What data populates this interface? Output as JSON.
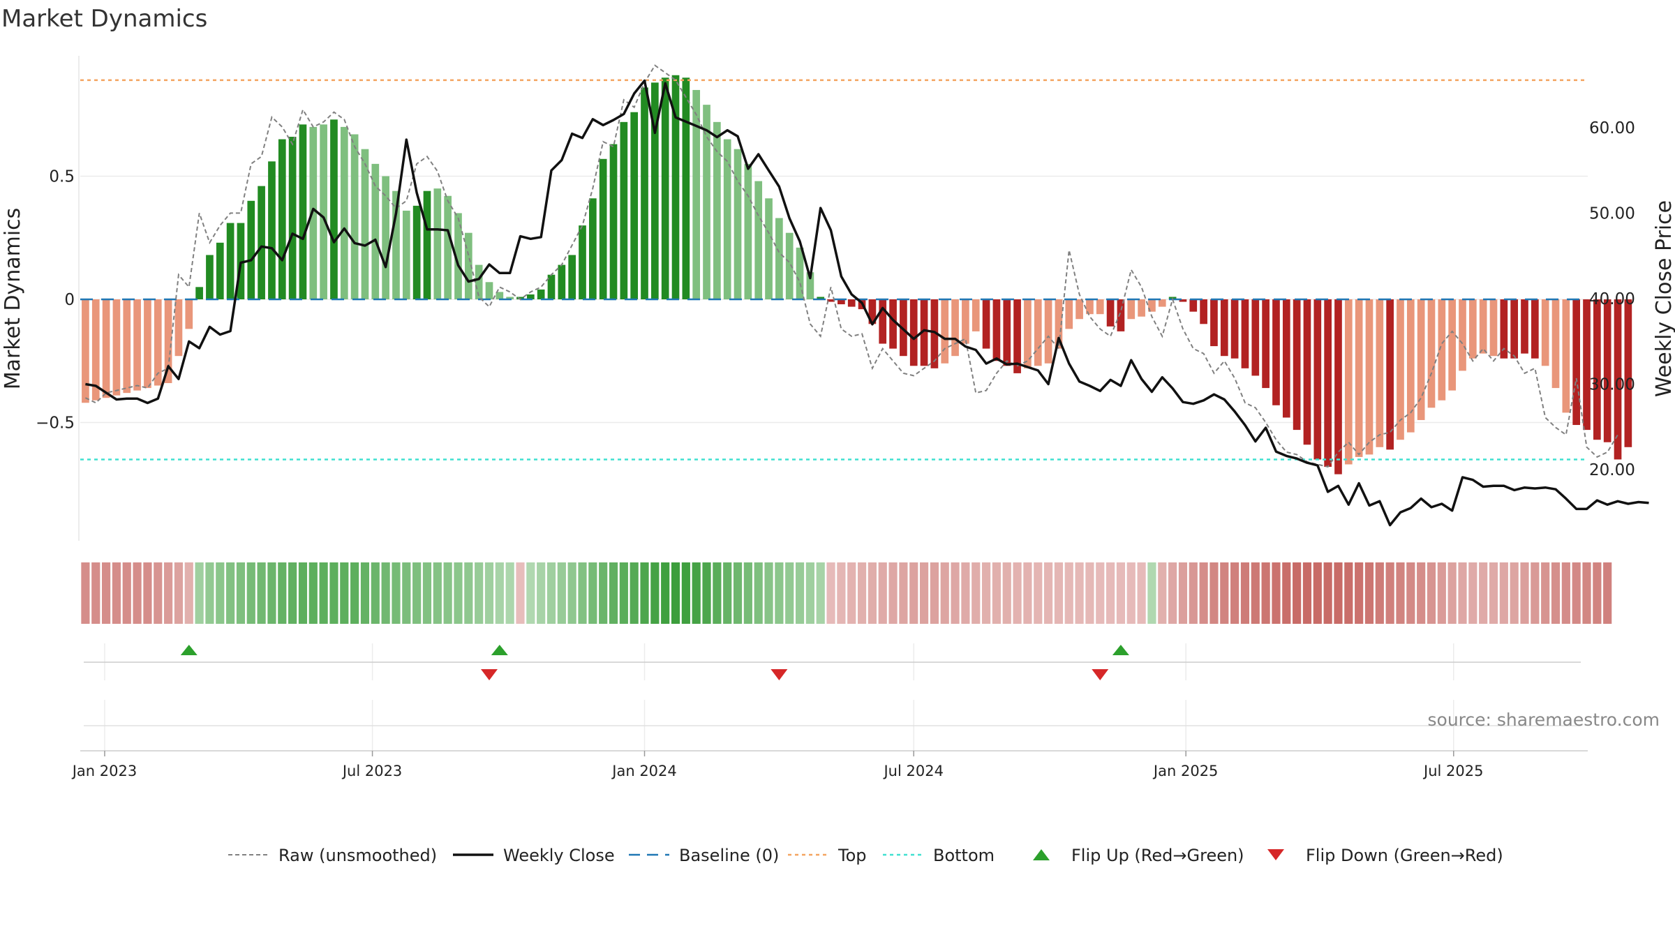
{
  "title": "Market Dynamics",
  "source": "source: sharemaestro.com",
  "colors": {
    "strong_up": "#228b22",
    "weak_up": "#7fbf7f",
    "strong_down": "#b22222",
    "weak_down": "#e9967a",
    "raw": "#808080",
    "close": "#111111",
    "baseline": "#1f77b4",
    "top": "#f4a460",
    "bottom": "#40e0d0",
    "flip_up": "#2ca02c",
    "flip_down": "#d62728"
  },
  "chart_data": {
    "type": "bar",
    "title": "Market Dynamics",
    "ylabel_left": "Market Dynamics",
    "ylabel_right": "Weekly Close Price",
    "left_ticks": [
      {
        "value": 0.5,
        "label": "0.5"
      },
      {
        "value": 0,
        "label": "0"
      },
      {
        "value": -0.5,
        "label": "−0.5"
      }
    ],
    "right_ticks": [
      {
        "value": 60,
        "label": "60.00"
      },
      {
        "value": 50,
        "label": "50.00"
      },
      {
        "value": 40,
        "label": "40.00"
      },
      {
        "value": 30,
        "label": "30.00"
      },
      {
        "value": 20,
        "label": "20.00"
      }
    ],
    "x_ticks": [
      "Jan 2023",
      "Jul 2023",
      "Jan 2024",
      "Jul 2024",
      "Jan 2025",
      "Jul 2025"
    ],
    "top_level": 0.89,
    "bottom_level": -0.65,
    "baseline": 0,
    "momentum": [
      -0.42,
      -0.41,
      -0.4,
      -0.39,
      -0.38,
      -0.37,
      -0.36,
      -0.35,
      -0.34,
      -0.23,
      -0.12,
      0.05,
      0.18,
      0.23,
      0.31,
      0.31,
      0.4,
      0.46,
      0.56,
      0.65,
      0.66,
      0.71,
      0.7,
      0.71,
      0.73,
      0.7,
      0.67,
      0.61,
      0.55,
      0.5,
      0.44,
      0.36,
      0.38,
      0.44,
      0.45,
      0.42,
      0.35,
      0.27,
      0.14,
      0.07,
      0.03,
      0.01,
      0.01,
      0.02,
      0.04,
      0.1,
      0.14,
      0.18,
      0.3,
      0.41,
      0.57,
      0.63,
      0.72,
      0.76,
      0.86,
      0.88,
      0.9,
      0.91,
      0.9,
      0.85,
      0.79,
      0.72,
      0.65,
      0.61,
      0.55,
      0.48,
      0.41,
      0.33,
      0.27,
      0.21,
      0.11,
      0.01,
      -0.01,
      -0.02,
      -0.03,
      -0.04,
      -0.1,
      -0.18,
      -0.2,
      -0.23,
      -0.27,
      -0.27,
      -0.28,
      -0.26,
      -0.23,
      -0.18,
      -0.13,
      -0.2,
      -0.25,
      -0.27,
      -0.3,
      -0.28,
      -0.27,
      -0.26,
      -0.2,
      -0.12,
      -0.08,
      -0.06,
      -0.06,
      -0.11,
      -0.13,
      -0.08,
      -0.07,
      -0.05,
      -0.03,
      0.01,
      -0.01,
      -0.05,
      -0.1,
      -0.19,
      -0.23,
      -0.24,
      -0.28,
      -0.31,
      -0.36,
      -0.43,
      -0.48,
      -0.53,
      -0.59,
      -0.65,
      -0.68,
      -0.71,
      -0.67,
      -0.64,
      -0.63,
      -0.6,
      -0.61,
      -0.57,
      -0.54,
      -0.49,
      -0.44,
      -0.41,
      -0.37,
      -0.29,
      -0.24,
      -0.22,
      -0.23,
      -0.24,
      -0.24,
      -0.22,
      -0.24,
      -0.27,
      -0.36,
      -0.46,
      -0.51,
      -0.53,
      -0.57,
      -0.58,
      -0.65,
      -0.6
    ],
    "momentum_shading": [
      "weak",
      "weak",
      "weak",
      "weak",
      "weak",
      "weak",
      "weak",
      "weak",
      "weak",
      "weak",
      "weak",
      "strong",
      "strong",
      "strong",
      "strong",
      "strong",
      "strong",
      "strong",
      "strong",
      "strong",
      "strong",
      "strong",
      "weak",
      "weak",
      "strong",
      "weak",
      "weak",
      "weak",
      "weak",
      "weak",
      "weak",
      "weak",
      "strong",
      "strong",
      "weak",
      "weak",
      "weak",
      "weak",
      "weak",
      "weak",
      "weak",
      "weak",
      "strong",
      "strong",
      "strong",
      "strong",
      "strong",
      "strong",
      "strong",
      "strong",
      "strong",
      "strong",
      "strong",
      "strong",
      "strong",
      "strong",
      "strong",
      "strong",
      "strong",
      "weak",
      "weak",
      "weak",
      "weak",
      "weak",
      "weak",
      "weak",
      "weak",
      "weak",
      "weak",
      "weak",
      "weak",
      "strong",
      "strong",
      "strong",
      "strong",
      "strong",
      "strong",
      "strong",
      "strong",
      "strong",
      "strong",
      "strong",
      "strong",
      "weak",
      "weak",
      "weak",
      "weak",
      "strong",
      "strong",
      "strong",
      "strong",
      "weak",
      "weak",
      "weak",
      "weak",
      "weak",
      "weak",
      "weak",
      "weak",
      "strong",
      "strong",
      "weak",
      "weak",
      "weak",
      "weak",
      "strong",
      "strong",
      "strong",
      "strong",
      "strong",
      "strong",
      "strong",
      "strong",
      "strong",
      "strong",
      "strong",
      "strong",
      "strong",
      "strong",
      "strong",
      "strong",
      "strong",
      "weak",
      "weak",
      "weak",
      "weak",
      "strong",
      "weak",
      "weak",
      "weak",
      "weak",
      "weak",
      "weak",
      "weak",
      "weak",
      "weak",
      "weak",
      "strong",
      "strong",
      "strong",
      "strong",
      "weak",
      "weak",
      "weak",
      "strong",
      "strong",
      "strong",
      "strong",
      "strong",
      "strong",
      "strong",
      "strong",
      "weak"
    ],
    "raw_momentum": [
      -0.4,
      -0.42,
      -0.38,
      -0.37,
      -0.36,
      -0.35,
      -0.36,
      -0.3,
      -0.28,
      0.1,
      0.05,
      0.35,
      0.23,
      0.3,
      0.35,
      0.35,
      0.55,
      0.58,
      0.74,
      0.7,
      0.63,
      0.77,
      0.7,
      0.72,
      0.76,
      0.73,
      0.62,
      0.55,
      0.46,
      0.42,
      0.37,
      0.4,
      0.55,
      0.58,
      0.52,
      0.4,
      0.33,
      0.18,
      0.01,
      -0.03,
      0.05,
      0.03,
      0.0,
      0.03,
      0.05,
      0.1,
      0.14,
      0.22,
      0.3,
      0.45,
      0.64,
      0.62,
      0.81,
      0.78,
      0.88,
      0.95,
      0.92,
      0.89,
      0.82,
      0.75,
      0.66,
      0.6,
      0.56,
      0.48,
      0.42,
      0.34,
      0.27,
      0.19,
      0.15,
      0.07,
      -0.1,
      -0.15,
      0.05,
      -0.12,
      -0.15,
      -0.14,
      -0.28,
      -0.2,
      -0.25,
      -0.3,
      -0.31,
      -0.28,
      -0.25,
      -0.2,
      -0.18,
      -0.16,
      -0.38,
      -0.37,
      -0.3,
      -0.25,
      -0.27,
      -0.25,
      -0.2,
      -0.15,
      -0.2,
      0.2,
      0.02,
      -0.07,
      -0.12,
      -0.15,
      -0.05,
      0.12,
      0.05,
      -0.07,
      -0.15,
      0.0,
      -0.12,
      -0.2,
      -0.22,
      -0.3,
      -0.25,
      -0.32,
      -0.42,
      -0.44,
      -0.5,
      -0.57,
      -0.62,
      -0.63,
      -0.66,
      -0.67,
      -0.68,
      -0.62,
      -0.58,
      -0.63,
      -0.58,
      -0.55,
      -0.54,
      -0.49,
      -0.46,
      -0.4,
      -0.3,
      -0.18,
      -0.13,
      -0.18,
      -0.25,
      -0.2,
      -0.25,
      -0.2,
      -0.23,
      -0.3,
      -0.28,
      -0.48,
      -0.52,
      -0.55,
      -0.32,
      -0.6,
      -0.64,
      -0.62,
      -0.55
    ],
    "weekly_close": [
      30.0,
      29.8,
      29.0,
      28.2,
      28.3,
      28.3,
      27.8,
      28.3,
      32.1,
      30.6,
      35.0,
      34.2,
      36.7,
      35.8,
      36.2,
      44.2,
      44.5,
      46.1,
      45.9,
      44.5,
      47.6,
      47.0,
      50.5,
      49.5,
      46.6,
      48.2,
      46.5,
      46.2,
      46.9,
      43.7,
      50.0,
      58.6,
      52.4,
      48.1,
      48.1,
      48.0,
      43.9,
      42.0,
      42.3,
      44.0,
      43.0,
      43.0,
      47.3,
      47.0,
      47.2,
      55.0,
      56.2,
      59.3,
      58.8,
      61.0,
      60.3,
      60.9,
      61.6,
      64.0,
      65.5,
      59.4,
      65.2,
      61.2,
      60.7,
      60.2,
      59.7,
      58.9,
      59.7,
      59.0,
      55.2,
      56.9,
      55.0,
      53.1,
      49.4,
      46.7,
      42.4,
      50.6,
      48.0,
      42.6,
      40.5,
      39.5,
      37.0,
      38.9,
      37.5,
      36.4,
      35.3,
      36.3,
      36.1,
      35.3,
      35.3,
      34.4,
      34.0,
      32.4,
      33.0,
      32.3,
      32.4,
      32.0,
      31.6,
      30.0,
      35.4,
      32.4,
      30.3,
      29.8,
      29.2,
      30.5,
      29.8,
      32.8,
      30.6,
      29.1,
      30.8,
      29.5,
      27.9,
      27.7,
      28.1,
      28.8,
      28.2,
      26.8,
      25.2,
      23.3,
      24.9,
      22.1,
      21.6,
      21.3,
      20.8,
      20.5,
      17.4,
      18.1,
      15.9,
      18.4,
      15.8,
      16.3,
      13.5,
      15.0,
      15.5,
      16.6,
      15.6,
      16.0,
      15.2,
      19.1,
      18.8,
      18.0,
      18.1,
      18.1,
      17.6,
      17.9,
      17.8,
      17.9,
      17.7,
      16.6,
      15.4,
      15.4,
      16.4,
      15.9,
      16.3,
      16.0,
      16.2,
      16.1
    ],
    "trend_strength": [
      -0.55,
      -0.55,
      -0.55,
      -0.55,
      -0.55,
      -0.55,
      -0.55,
      -0.5,
      -0.45,
      -0.4,
      -0.3,
      0.3,
      0.38,
      0.42,
      0.48,
      0.5,
      0.55,
      0.58,
      0.62,
      0.66,
      0.68,
      0.7,
      0.7,
      0.7,
      0.7,
      0.7,
      0.7,
      0.66,
      0.62,
      0.58,
      0.55,
      0.52,
      0.5,
      0.48,
      0.46,
      0.44,
      0.42,
      0.4,
      0.35,
      0.3,
      0.25,
      0.22,
      -0.2,
      0.2,
      0.25,
      0.3,
      0.35,
      0.4,
      0.48,
      0.55,
      0.62,
      0.68,
      0.72,
      0.75,
      0.8,
      0.85,
      0.88,
      0.9,
      0.88,
      0.85,
      0.8,
      0.72,
      0.65,
      0.6,
      0.55,
      0.5,
      0.45,
      0.42,
      0.38,
      0.35,
      0.3,
      0.25,
      -0.22,
      -0.25,
      -0.28,
      -0.3,
      -0.32,
      -0.34,
      -0.36,
      -0.38,
      -0.4,
      -0.4,
      -0.4,
      -0.38,
      -0.36,
      -0.34,
      -0.32,
      -0.3,
      -0.3,
      -0.3,
      -0.28,
      -0.28,
      -0.26,
      -0.26,
      -0.25,
      -0.24,
      -0.24,
      -0.24,
      -0.22,
      -0.22,
      -0.22,
      -0.22,
      -0.22,
      0.2,
      -0.3,
      -0.36,
      -0.42,
      -0.48,
      -0.55,
      -0.6,
      -0.62,
      -0.65,
      -0.68,
      -0.7,
      -0.72,
      -0.75,
      -0.78,
      -0.8,
      -0.8,
      -0.8,
      -0.8,
      -0.8,
      -0.78,
      -0.75,
      -0.72,
      -0.68,
      -0.65,
      -0.62,
      -0.58,
      -0.55,
      -0.5,
      -0.45,
      -0.4,
      -0.36,
      -0.34,
      -0.34,
      -0.34,
      -0.36,
      -0.38,
      -0.42,
      -0.46,
      -0.5,
      -0.54,
      -0.56,
      -0.58,
      -0.6,
      -0.62,
      -0.64
    ],
    "flip_up_weeks": [
      10,
      40,
      100
    ],
    "flip_down_weeks": [
      39,
      67,
      98
    ],
    "weeks": 146,
    "start_date": "2022-12-19",
    "legend": [
      {
        "label": "Raw (unsmoothed)",
        "style": "raw"
      },
      {
        "label": "Weekly Close",
        "style": "close"
      },
      {
        "label": "Baseline (0)",
        "style": "baseline"
      },
      {
        "label": "Top",
        "style": "top"
      },
      {
        "label": "Bottom",
        "style": "bottom"
      },
      {
        "label": "Flip Up (Red→Green)",
        "style": "flip_up"
      },
      {
        "label": "Flip Down (Green→Red)",
        "style": "flip_down"
      }
    ],
    "legend_position": "bottom-center",
    "grid": true
  }
}
